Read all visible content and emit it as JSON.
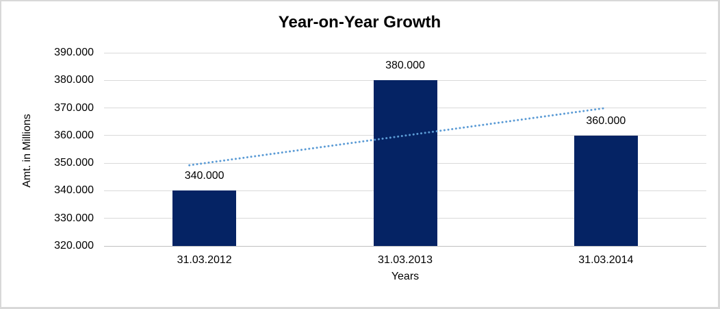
{
  "window": {
    "background_color": "#FFFFFF",
    "border_color": "#D8D8D8"
  },
  "chart_data": {
    "type": "bar",
    "title": "Year-on-Year Growth",
    "xlabel": "Years",
    "ylabel": "Amt. in Millions",
    "categories": [
      "31.03.2012",
      "31.03.2013",
      "31.03.2014"
    ],
    "values": [
      340000,
      380000,
      360000
    ],
    "data_labels": [
      "340.000",
      "380.000",
      "360.000"
    ],
    "ylim": [
      320000,
      390000
    ],
    "y_ticks": [
      {
        "value": 320000,
        "label": "320.000"
      },
      {
        "value": 330000,
        "label": "330.000"
      },
      {
        "value": 340000,
        "label": "340.000"
      },
      {
        "value": 350000,
        "label": "350.000"
      },
      {
        "value": 360000,
        "label": "360.000"
      },
      {
        "value": 370000,
        "label": "370.000"
      },
      {
        "value": 380000,
        "label": "380.000"
      },
      {
        "value": 390000,
        "label": "390.000"
      }
    ],
    "grid": "horizontal-major",
    "legend": "none",
    "bar_color": "#052364",
    "gridline_color": "#D9D9D9",
    "axis_line_color": "#BFBFBF",
    "text_color": "#000000",
    "trendline": {
      "type": "linear",
      "line_style": "dotted",
      "color": "#5B9BD5",
      "start_category_index": 0,
      "start_value": 350000,
      "end_category_index": 2,
      "end_value": 370000
    }
  }
}
